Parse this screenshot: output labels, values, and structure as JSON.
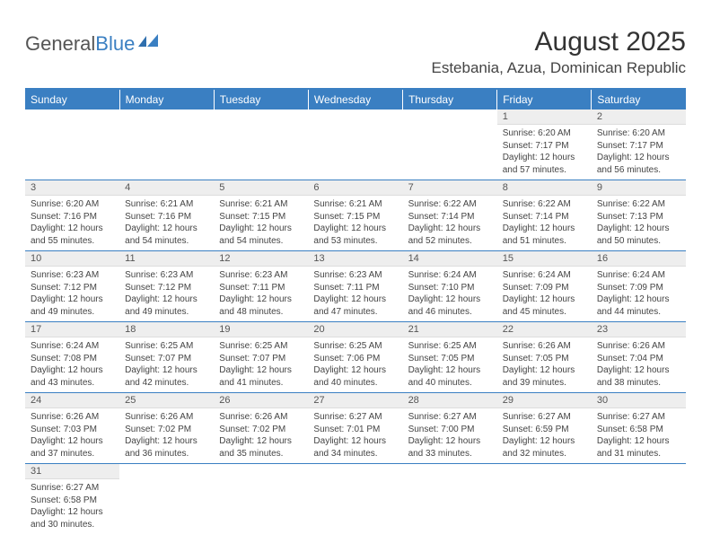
{
  "brand": {
    "part1": "General",
    "part2": "Blue"
  },
  "title": "August 2025",
  "location": "Estebania, Azua, Dominican Republic",
  "colors": {
    "accent": "#3a7fc2",
    "header_bg": "#3a7fc2",
    "daynum_bg": "#eeeeee",
    "text": "#333333"
  },
  "weekdays": [
    "Sunday",
    "Monday",
    "Tuesday",
    "Wednesday",
    "Thursday",
    "Friday",
    "Saturday"
  ],
  "weeks": [
    [
      null,
      null,
      null,
      null,
      null,
      {
        "n": "1",
        "sr": "Sunrise: 6:20 AM",
        "ss": "Sunset: 7:17 PM",
        "d1": "Daylight: 12 hours",
        "d2": "and 57 minutes."
      },
      {
        "n": "2",
        "sr": "Sunrise: 6:20 AM",
        "ss": "Sunset: 7:17 PM",
        "d1": "Daylight: 12 hours",
        "d2": "and 56 minutes."
      }
    ],
    [
      {
        "n": "3",
        "sr": "Sunrise: 6:20 AM",
        "ss": "Sunset: 7:16 PM",
        "d1": "Daylight: 12 hours",
        "d2": "and 55 minutes."
      },
      {
        "n": "4",
        "sr": "Sunrise: 6:21 AM",
        "ss": "Sunset: 7:16 PM",
        "d1": "Daylight: 12 hours",
        "d2": "and 54 minutes."
      },
      {
        "n": "5",
        "sr": "Sunrise: 6:21 AM",
        "ss": "Sunset: 7:15 PM",
        "d1": "Daylight: 12 hours",
        "d2": "and 54 minutes."
      },
      {
        "n": "6",
        "sr": "Sunrise: 6:21 AM",
        "ss": "Sunset: 7:15 PM",
        "d1": "Daylight: 12 hours",
        "d2": "and 53 minutes."
      },
      {
        "n": "7",
        "sr": "Sunrise: 6:22 AM",
        "ss": "Sunset: 7:14 PM",
        "d1": "Daylight: 12 hours",
        "d2": "and 52 minutes."
      },
      {
        "n": "8",
        "sr": "Sunrise: 6:22 AM",
        "ss": "Sunset: 7:14 PM",
        "d1": "Daylight: 12 hours",
        "d2": "and 51 minutes."
      },
      {
        "n": "9",
        "sr": "Sunrise: 6:22 AM",
        "ss": "Sunset: 7:13 PM",
        "d1": "Daylight: 12 hours",
        "d2": "and 50 minutes."
      }
    ],
    [
      {
        "n": "10",
        "sr": "Sunrise: 6:23 AM",
        "ss": "Sunset: 7:12 PM",
        "d1": "Daylight: 12 hours",
        "d2": "and 49 minutes."
      },
      {
        "n": "11",
        "sr": "Sunrise: 6:23 AM",
        "ss": "Sunset: 7:12 PM",
        "d1": "Daylight: 12 hours",
        "d2": "and 49 minutes."
      },
      {
        "n": "12",
        "sr": "Sunrise: 6:23 AM",
        "ss": "Sunset: 7:11 PM",
        "d1": "Daylight: 12 hours",
        "d2": "and 48 minutes."
      },
      {
        "n": "13",
        "sr": "Sunrise: 6:23 AM",
        "ss": "Sunset: 7:11 PM",
        "d1": "Daylight: 12 hours",
        "d2": "and 47 minutes."
      },
      {
        "n": "14",
        "sr": "Sunrise: 6:24 AM",
        "ss": "Sunset: 7:10 PM",
        "d1": "Daylight: 12 hours",
        "d2": "and 46 minutes."
      },
      {
        "n": "15",
        "sr": "Sunrise: 6:24 AM",
        "ss": "Sunset: 7:09 PM",
        "d1": "Daylight: 12 hours",
        "d2": "and 45 minutes."
      },
      {
        "n": "16",
        "sr": "Sunrise: 6:24 AM",
        "ss": "Sunset: 7:09 PM",
        "d1": "Daylight: 12 hours",
        "d2": "and 44 minutes."
      }
    ],
    [
      {
        "n": "17",
        "sr": "Sunrise: 6:24 AM",
        "ss": "Sunset: 7:08 PM",
        "d1": "Daylight: 12 hours",
        "d2": "and 43 minutes."
      },
      {
        "n": "18",
        "sr": "Sunrise: 6:25 AM",
        "ss": "Sunset: 7:07 PM",
        "d1": "Daylight: 12 hours",
        "d2": "and 42 minutes."
      },
      {
        "n": "19",
        "sr": "Sunrise: 6:25 AM",
        "ss": "Sunset: 7:07 PM",
        "d1": "Daylight: 12 hours",
        "d2": "and 41 minutes."
      },
      {
        "n": "20",
        "sr": "Sunrise: 6:25 AM",
        "ss": "Sunset: 7:06 PM",
        "d1": "Daylight: 12 hours",
        "d2": "and 40 minutes."
      },
      {
        "n": "21",
        "sr": "Sunrise: 6:25 AM",
        "ss": "Sunset: 7:05 PM",
        "d1": "Daylight: 12 hours",
        "d2": "and 40 minutes."
      },
      {
        "n": "22",
        "sr": "Sunrise: 6:26 AM",
        "ss": "Sunset: 7:05 PM",
        "d1": "Daylight: 12 hours",
        "d2": "and 39 minutes."
      },
      {
        "n": "23",
        "sr": "Sunrise: 6:26 AM",
        "ss": "Sunset: 7:04 PM",
        "d1": "Daylight: 12 hours",
        "d2": "and 38 minutes."
      }
    ],
    [
      {
        "n": "24",
        "sr": "Sunrise: 6:26 AM",
        "ss": "Sunset: 7:03 PM",
        "d1": "Daylight: 12 hours",
        "d2": "and 37 minutes."
      },
      {
        "n": "25",
        "sr": "Sunrise: 6:26 AM",
        "ss": "Sunset: 7:02 PM",
        "d1": "Daylight: 12 hours",
        "d2": "and 36 minutes."
      },
      {
        "n": "26",
        "sr": "Sunrise: 6:26 AM",
        "ss": "Sunset: 7:02 PM",
        "d1": "Daylight: 12 hours",
        "d2": "and 35 minutes."
      },
      {
        "n": "27",
        "sr": "Sunrise: 6:27 AM",
        "ss": "Sunset: 7:01 PM",
        "d1": "Daylight: 12 hours",
        "d2": "and 34 minutes."
      },
      {
        "n": "28",
        "sr": "Sunrise: 6:27 AM",
        "ss": "Sunset: 7:00 PM",
        "d1": "Daylight: 12 hours",
        "d2": "and 33 minutes."
      },
      {
        "n": "29",
        "sr": "Sunrise: 6:27 AM",
        "ss": "Sunset: 6:59 PM",
        "d1": "Daylight: 12 hours",
        "d2": "and 32 minutes."
      },
      {
        "n": "30",
        "sr": "Sunrise: 6:27 AM",
        "ss": "Sunset: 6:58 PM",
        "d1": "Daylight: 12 hours",
        "d2": "and 31 minutes."
      }
    ],
    [
      {
        "n": "31",
        "sr": "Sunrise: 6:27 AM",
        "ss": "Sunset: 6:58 PM",
        "d1": "Daylight: 12 hours",
        "d2": "and 30 minutes."
      },
      null,
      null,
      null,
      null,
      null,
      null
    ]
  ]
}
